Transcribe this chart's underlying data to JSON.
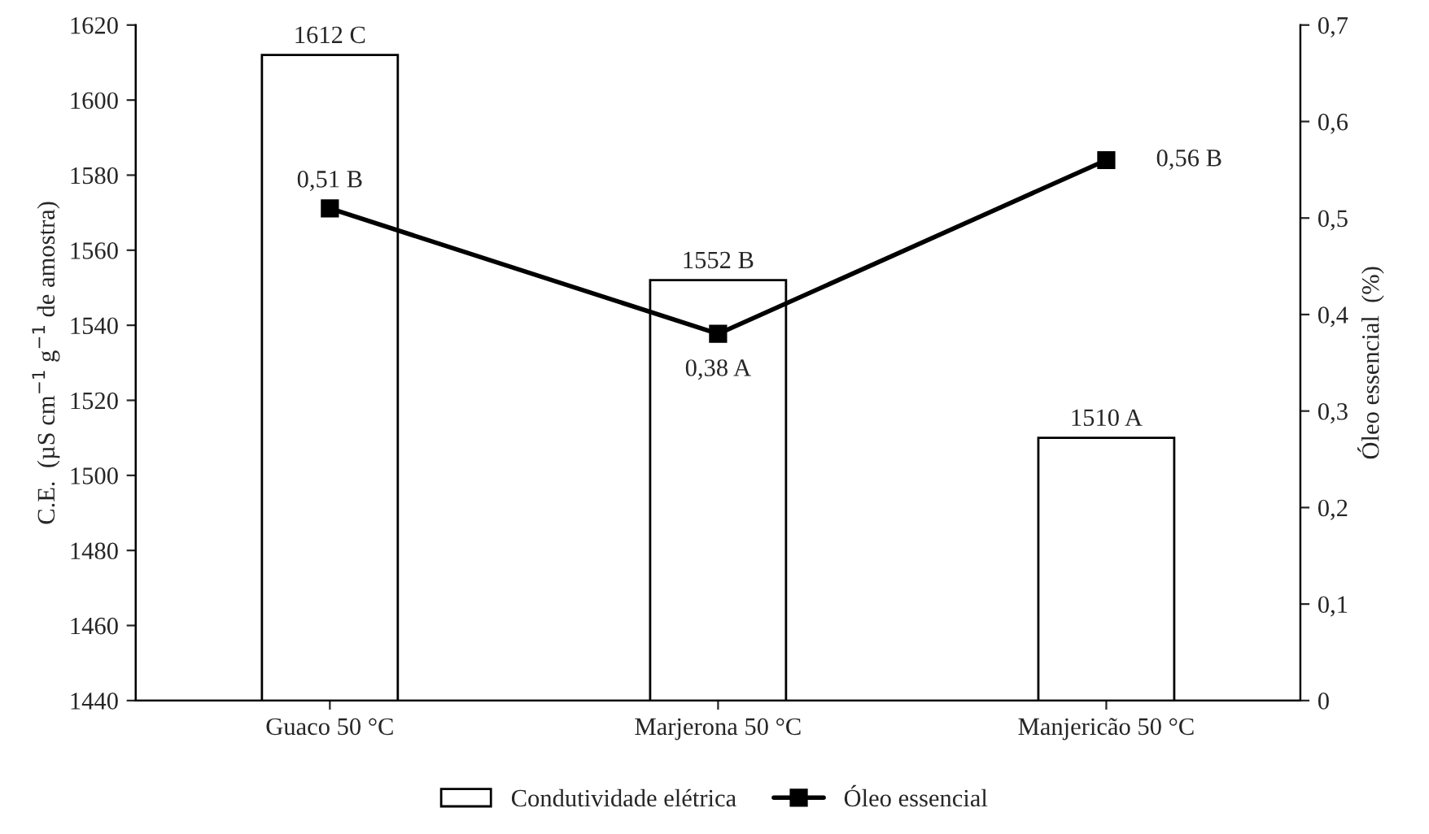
{
  "chart_data": {
    "type": "bar",
    "categories": [
      "Guaco 50 °C",
      "Marjerona 50 °C",
      "Manjericão 50 °C"
    ],
    "ylabel": "C.E.  (µS cm$^{−1}$ g$^{−1}$ de amostra)",
    "y2label": "Óleo essencial  (%)",
    "ylim": [
      1440,
      1620
    ],
    "yticks": [
      1440,
      1460,
      1480,
      1500,
      1520,
      1540,
      1560,
      1580,
      1600,
      1620
    ],
    "y2lim": [
      0,
      0.7
    ],
    "y2ticks": [
      0,
      {
        "value": 0.1,
        "label": "0,1"
      },
      {
        "value": 0.2,
        "label": "0,2"
      },
      {
        "value": 0.3,
        "label": "0,3"
      },
      {
        "value": 0.4,
        "label": "0,4"
      },
      {
        "value": 0.5,
        "label": "0,5"
      },
      {
        "value": 0.6,
        "label": "0,6"
      },
      {
        "value": 0.7,
        "label": "0,7"
      }
    ],
    "series": [
      {
        "name": "Condutividade elétrica",
        "color": "#ffffff",
        "values": [
          1612,
          1552,
          1510
        ],
        "value_labels": [
          "1612 C",
          "1552 B",
          "1510 A"
        ]
      },
      {
        "name": "Óleo essencial",
        "type": "line",
        "axis": "y2",
        "color": "#000000",
        "values": [
          0.51,
          0.38,
          0.56
        ],
        "value_labels": [
          "0,51 B",
          "0,38 A",
          "0,56 B"
        ]
      }
    ],
    "marker": "square",
    "line_style": "solid",
    "grid": false,
    "legend": "bottom"
  }
}
